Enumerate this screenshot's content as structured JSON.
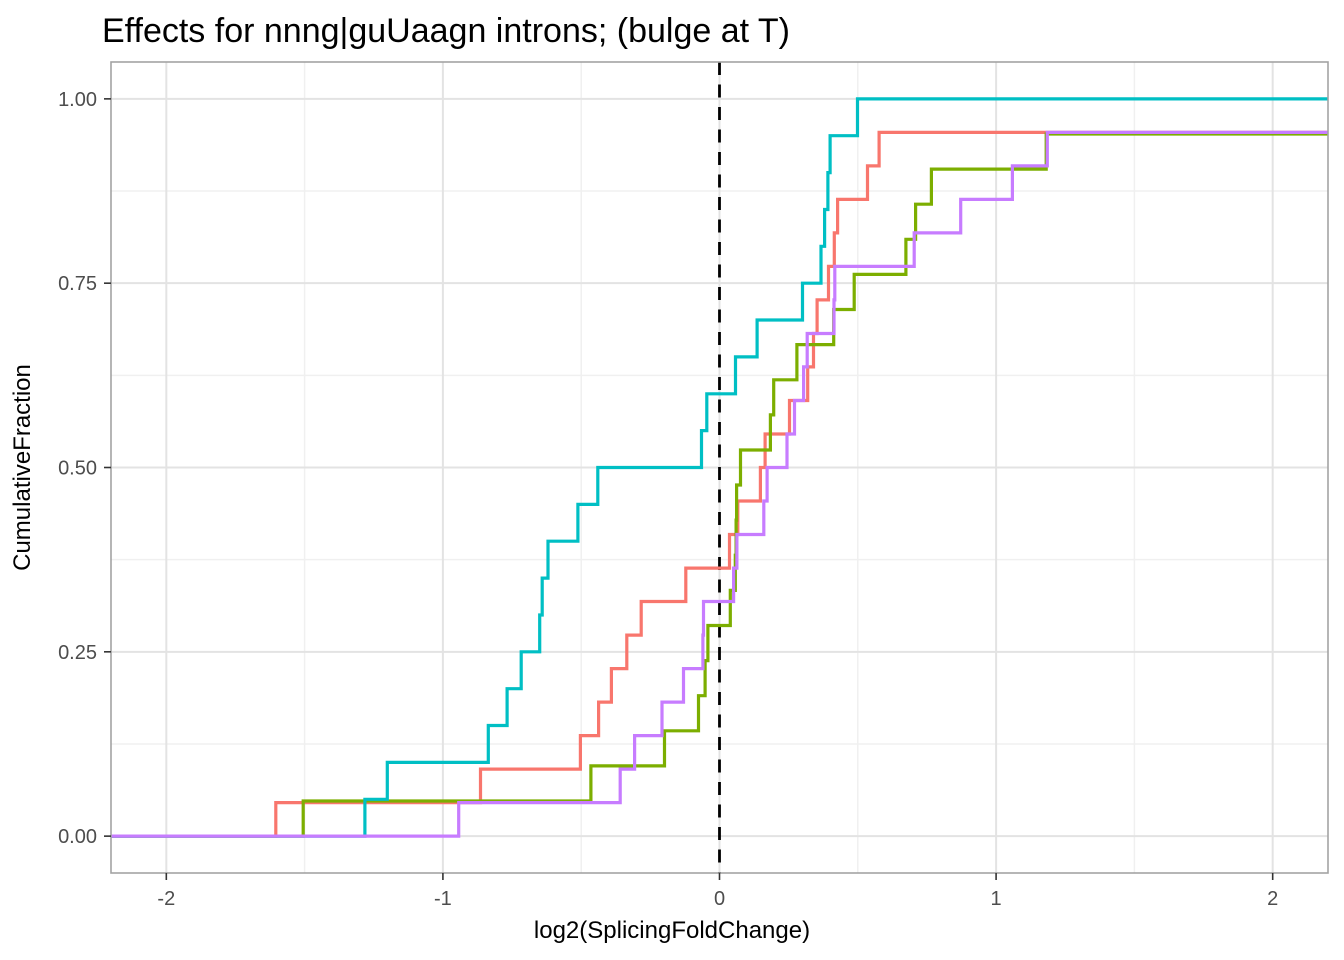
{
  "chart": {
    "title": "Effects for nnng|guUaagn introns; (bulge at T)",
    "xlabel": "log2(SplicingFoldChange)",
    "ylabel": "CumulativeFraction"
  },
  "chart_data": {
    "type": "line",
    "subtype": "ecdf-step",
    "title": "Effects for nnng|guUaagn introns; (bulge at T)",
    "xlabel": "log2(SplicingFoldChange)",
    "ylabel": "CumulativeFraction",
    "xlim": [
      -2.2,
      2.2
    ],
    "ylim": [
      -0.05,
      1.05
    ],
    "grid": true,
    "legend": "none",
    "x_major_ticks": [
      {
        "v": -2,
        "label": "-2"
      },
      {
        "v": -1,
        "label": "-1"
      },
      {
        "v": 0,
        "label": "0"
      },
      {
        "v": 1,
        "label": "1"
      },
      {
        "v": 2,
        "label": "2"
      }
    ],
    "y_major_ticks": [
      {
        "v": 0.0,
        "label": "0.00"
      },
      {
        "v": 0.25,
        "label": "0.25"
      },
      {
        "v": 0.5,
        "label": "0.50"
      },
      {
        "v": 0.75,
        "label": "0.75"
      },
      {
        "v": 1.0,
        "label": "1.00"
      }
    ],
    "x_minor_ticks": [
      -1.5,
      -0.5,
      0.5,
      1.5
    ],
    "y_minor_ticks": [
      0.125,
      0.375,
      0.625,
      0.875
    ],
    "reference_line": {
      "x": 0,
      "style": "dashed",
      "color": "#000000"
    },
    "colors": {
      "major_grid": "#e3e3e3",
      "minor_grid": "#f0f0f0",
      "panel_border": "#a3a3a3",
      "tick_mark": "#333333",
      "tick_label": "#4d4d4d",
      "panel_background": "#ffffff"
    },
    "series": [
      {
        "name": "salmon",
        "color": "#F8766D",
        "n_points": 22,
        "start_y": 0,
        "jump_x": [
          -1.604,
          -0.864,
          -0.503,
          -0.437,
          -0.391,
          -0.335,
          -0.283,
          -0.122,
          0.036,
          0.066,
          0.148,
          0.165,
          0.253,
          0.319,
          0.34,
          0.353,
          0.394,
          0.415,
          0.427,
          0.535,
          0.577
        ],
        "jump_y": [
          0.0455,
          0.0909,
          0.1364,
          0.1818,
          0.2273,
          0.2727,
          0.3182,
          0.3636,
          0.4091,
          0.4545,
          0.5,
          0.5455,
          0.5909,
          0.6364,
          0.6818,
          0.7273,
          0.7727,
          0.8182,
          0.8636,
          0.9091,
          0.9545
        ]
      },
      {
        "name": "olive-green",
        "color": "#7CAE00",
        "n_points": 21,
        "start_y": 0,
        "jump_x": [
          -1.505,
          -0.465,
          -0.199,
          -0.076,
          -0.052,
          -0.042,
          0.039,
          0.057,
          0.06,
          0.062,
          0.076,
          0.184,
          0.196,
          0.28,
          0.413,
          0.487,
          0.674,
          0.709,
          0.766,
          1.181
        ],
        "jump_y": [
          0.0476,
          0.0952,
          0.1429,
          0.1905,
          0.2381,
          0.2857,
          0.3333,
          0.381,
          0.4286,
          0.4762,
          0.5238,
          0.5714,
          0.619,
          0.6667,
          0.7143,
          0.7619,
          0.8095,
          0.8571,
          0.9048,
          0.9524
        ]
      },
      {
        "name": "teal",
        "color": "#00BFC4",
        "n_points": 20,
        "start_y": 0,
        "jump_x": [
          -1.282,
          -1.201,
          -0.836,
          -0.768,
          -0.717,
          -0.65,
          -0.641,
          -0.62,
          -0.512,
          -0.44,
          -0.065,
          -0.046,
          0.058,
          0.136,
          0.3,
          0.367,
          0.38,
          0.392,
          0.4,
          0.499
        ],
        "jump_y": [
          0.05,
          0.1,
          0.15,
          0.2,
          0.25,
          0.3,
          0.35,
          0.4,
          0.45,
          0.5,
          0.55,
          0.6,
          0.65,
          0.7,
          0.75,
          0.8,
          0.85,
          0.9,
          0.95,
          1.0
        ]
      },
      {
        "name": "purple",
        "color": "#C77CFF",
        "n_points": 22,
        "start_y": 0,
        "jump_x": [
          -0.943,
          -0.359,
          -0.307,
          -0.208,
          -0.13,
          -0.06,
          -0.058,
          0.051,
          0.063,
          0.16,
          0.172,
          0.244,
          0.271,
          0.304,
          0.317,
          0.414,
          0.417,
          0.704,
          0.872,
          1.059,
          1.185
        ],
        "jump_y": [
          0.0455,
          0.0909,
          0.1364,
          0.1818,
          0.2273,
          0.2727,
          0.3182,
          0.3636,
          0.4091,
          0.4545,
          0.5,
          0.5455,
          0.5909,
          0.6364,
          0.6818,
          0.7273,
          0.7727,
          0.8182,
          0.8636,
          0.9091,
          0.9545
        ]
      }
    ]
  }
}
